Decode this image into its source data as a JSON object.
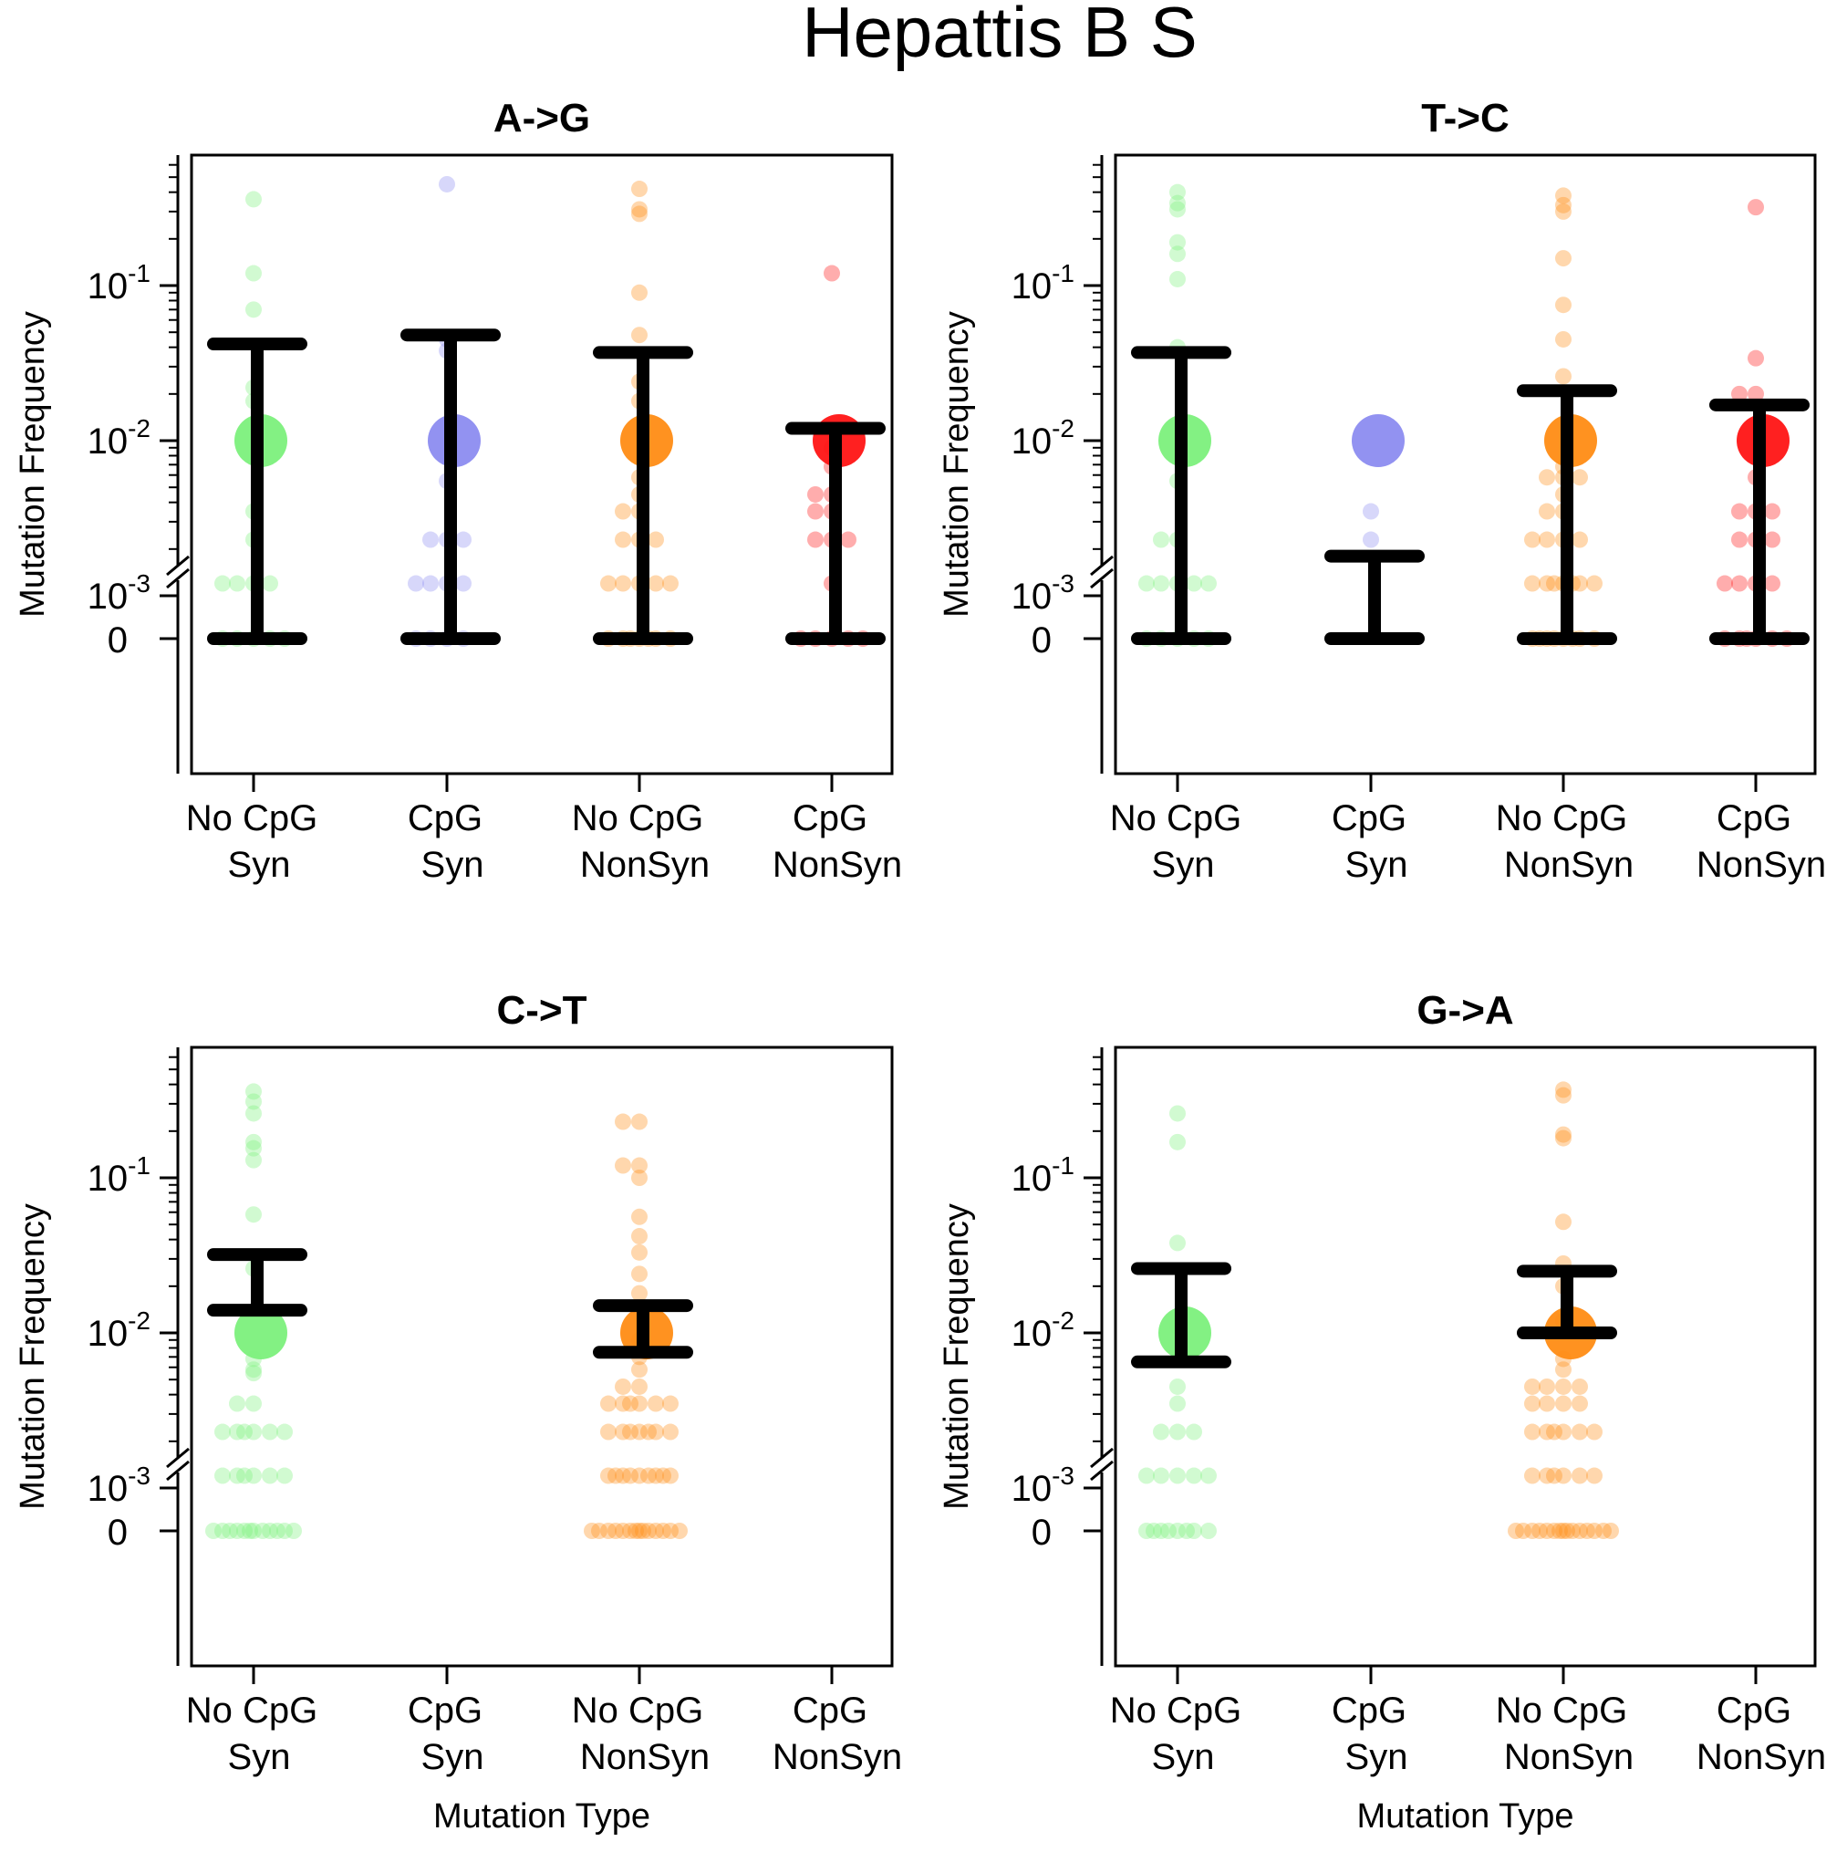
{
  "figure": {
    "title": "Hepattis B S"
  },
  "colors": {
    "no_cpg_syn": "#7CF07C",
    "cpg_syn": "#8C8CF0",
    "no_cpg_nonsyn": "#FF8C14",
    "cpg_nonsyn": "#FF1414",
    "errorbar": "#000000"
  },
  "chart_data": [
    {
      "type": "scatter",
      "title": "A->G",
      "ylabel": "Mutation Frequency",
      "xlabel": "",
      "yscale": "log with broken axis at 0",
      "ylim": [
        0.0001,
        0.8
      ],
      "categories": [
        {
          "line1": "No CpG",
          "line2": "Syn"
        },
        {
          "line1": "CpG",
          "line2": "Syn"
        },
        {
          "line1": "No CpG",
          "line2": "NonSyn"
        },
        {
          "line1": "CpG",
          "line2": "NonSyn"
        }
      ],
      "series": [
        {
          "category": 0,
          "color_key": "no_cpg_syn",
          "mean": 0.01,
          "err_low": 0,
          "err_high": 0.042,
          "points": [
            0.36,
            0.12,
            0.07,
            0.022,
            0.018,
            0.0035,
            0.0023,
            0.0012,
            0.0012,
            0.0012,
            0.0012,
            0,
            0,
            0,
            0,
            0
          ]
        },
        {
          "category": 1,
          "color_key": "cpg_syn",
          "mean": 0.01,
          "err_low": 0,
          "err_high": 0.048,
          "points": [
            0.45,
            0.045,
            0.038,
            0.0055,
            0.0023,
            0.0023,
            0.0023,
            0.0012,
            0.0012,
            0.0012,
            0.0012,
            0,
            0,
            0,
            0
          ]
        },
        {
          "category": 2,
          "color_key": "no_cpg_nonsyn",
          "mean": 0.01,
          "err_low": 0,
          "err_high": 0.037,
          "points": [
            0.42,
            0.31,
            0.29,
            0.09,
            0.048,
            0.024,
            0.018,
            0.0058,
            0.0045,
            0.0035,
            0.0035,
            0.0023,
            0.0023,
            0.0023,
            0.0012,
            0.0012,
            0.0012,
            0.0012,
            0.0012,
            0,
            0,
            0,
            0,
            0,
            0,
            0
          ]
        },
        {
          "category": 3,
          "color_key": "cpg_nonsyn",
          "mean": 0.01,
          "err_low": 0,
          "err_high": 0.012,
          "points": [
            0.12,
            0.009,
            0.0068,
            0.0045,
            0.0045,
            0.0035,
            0.0035,
            0.0023,
            0.0023,
            0.0023,
            0.0012,
            0,
            0,
            0,
            0,
            0
          ]
        }
      ]
    },
    {
      "type": "scatter",
      "title": "T->C",
      "ylabel": "Mutation Frequency",
      "xlabel": "",
      "yscale": "log with broken axis at 0",
      "ylim": [
        0.0001,
        0.8
      ],
      "categories": [
        {
          "line1": "No CpG",
          "line2": "Syn"
        },
        {
          "line1": "CpG",
          "line2": "Syn"
        },
        {
          "line1": "No CpG",
          "line2": "NonSyn"
        },
        {
          "line1": "CpG",
          "line2": "NonSyn"
        }
      ],
      "series": [
        {
          "category": 0,
          "color_key": "no_cpg_syn",
          "mean": 0.01,
          "err_low": 0,
          "err_high": 0.037,
          "points": [
            0.4,
            0.34,
            0.31,
            0.19,
            0.16,
            0.11,
            0.04,
            0.0055,
            0.0023,
            0.0023,
            0.0012,
            0.0012,
            0.0012,
            0.0012,
            0.0012,
            0,
            0,
            0,
            0,
            0
          ]
        },
        {
          "category": 1,
          "color_key": "cpg_syn",
          "mean": 0.01,
          "err_low": 0,
          "err_high": 0.0018,
          "points": [
            0.0035,
            0.0023
          ]
        },
        {
          "category": 2,
          "color_key": "no_cpg_nonsyn",
          "mean": 0.01,
          "err_low": 0,
          "err_high": 0.021,
          "points": [
            0.38,
            0.33,
            0.3,
            0.15,
            0.075,
            0.045,
            0.026,
            0.0068,
            0.0058,
            0.0058,
            0.0058,
            0.0045,
            0.0035,
            0.0035,
            0.0023,
            0.0023,
            0.0023,
            0.0023,
            0.0012,
            0.0012,
            0.0012,
            0.0012,
            0.0012,
            0.0012,
            0.0012,
            0,
            0,
            0,
            0,
            0,
            0,
            0,
            0
          ]
        },
        {
          "category": 3,
          "color_key": "cpg_nonsyn",
          "mean": 0.01,
          "err_low": 0,
          "err_high": 0.017,
          "points": [
            0.32,
            0.034,
            0.02,
            0.02,
            0.0058,
            0.0035,
            0.0035,
            0.0035,
            0.0023,
            0.0023,
            0.0023,
            0.0012,
            0.0012,
            0.0012,
            0.0012,
            0,
            0,
            0,
            0,
            0,
            0
          ]
        }
      ]
    },
    {
      "type": "scatter",
      "title": "C->T",
      "ylabel": "Mutation Frequency",
      "xlabel": "Mutation Type",
      "yscale": "log with broken axis at 0",
      "ylim": [
        0.0001,
        0.8
      ],
      "categories": [
        {
          "line1": "No CpG",
          "line2": "Syn"
        },
        {
          "line1": "CpG",
          "line2": "Syn"
        },
        {
          "line1": "No CpG",
          "line2": "NonSyn"
        },
        {
          "line1": "CpG",
          "line2": "NonSyn"
        }
      ],
      "series": [
        {
          "category": 0,
          "color_key": "no_cpg_syn",
          "mean": 0.01,
          "err_low": 0.014,
          "err_high": 0.032,
          "points": [
            0.36,
            0.31,
            0.26,
            0.17,
            0.155,
            0.13,
            0.058,
            0.026,
            0.0068,
            0.0058,
            0.0055,
            0.0035,
            0.0035,
            0.0023,
            0.0023,
            0.0023,
            0.0023,
            0.0023,
            0.0023,
            0.0012,
            0.0012,
            0.0012,
            0.0012,
            0.0012,
            0.0012,
            0,
            0,
            0,
            0,
            0,
            0,
            0,
            0,
            0,
            0,
            0,
            0
          ]
        },
        {
          "category": 2,
          "color_key": "no_cpg_nonsyn",
          "mean": 0.01,
          "err_low": 0.0075,
          "err_high": 0.015,
          "points": [
            0.23,
            0.23,
            0.12,
            0.12,
            0.1,
            0.056,
            0.042,
            0.033,
            0.024,
            0.018,
            0.009,
            0.007,
            0.0058,
            0.0045,
            0.0045,
            0.0035,
            0.0035,
            0.0035,
            0.0035,
            0.0035,
            0.0035,
            0.0023,
            0.0023,
            0.0023,
            0.0023,
            0.0023,
            0.0023,
            0.0023,
            0.0012,
            0.0012,
            0.0012,
            0.0012,
            0.0012,
            0.0012,
            0.0012,
            0.0012,
            0.0012,
            0,
            0,
            0,
            0,
            0,
            0,
            0,
            0,
            0,
            0,
            0,
            0,
            0,
            0
          ]
        }
      ]
    },
    {
      "type": "scatter",
      "title": "G->A",
      "ylabel": "Mutation Frequency",
      "xlabel": "Mutation Type",
      "yscale": "log with broken axis at 0",
      "ylim": [
        0.0001,
        0.8
      ],
      "categories": [
        {
          "line1": "No CpG",
          "line2": "Syn"
        },
        {
          "line1": "CpG",
          "line2": "Syn"
        },
        {
          "line1": "No CpG",
          "line2": "NonSyn"
        },
        {
          "line1": "CpG",
          "line2": "NonSyn"
        }
      ],
      "series": [
        {
          "category": 0,
          "color_key": "no_cpg_syn",
          "mean": 0.01,
          "err_low": 0.0065,
          "err_high": 0.026,
          "points": [
            0.26,
            0.17,
            0.038,
            0.011,
            0.0045,
            0.0035,
            0.0023,
            0.0023,
            0.0023,
            0.0012,
            0.0012,
            0.0012,
            0.0012,
            0.0012,
            0,
            0,
            0,
            0,
            0,
            0,
            0,
            0
          ]
        },
        {
          "category": 2,
          "color_key": "no_cpg_nonsyn",
          "mean": 0.01,
          "err_low": 0.01,
          "err_high": 0.025,
          "points": [
            0.37,
            0.34,
            0.19,
            0.18,
            0.052,
            0.028,
            0.02,
            0.012,
            0.0068,
            0.0058,
            0.0045,
            0.0045,
            0.0045,
            0.0045,
            0.0035,
            0.0035,
            0.0035,
            0.0035,
            0.0023,
            0.0023,
            0.0023,
            0.0023,
            0.0023,
            0.0023,
            0.0012,
            0.0012,
            0.0012,
            0.0012,
            0.0012,
            0.0012,
            0,
            0,
            0,
            0,
            0,
            0,
            0,
            0,
            0,
            0,
            0,
            0,
            0,
            0,
            0
          ]
        }
      ]
    }
  ]
}
